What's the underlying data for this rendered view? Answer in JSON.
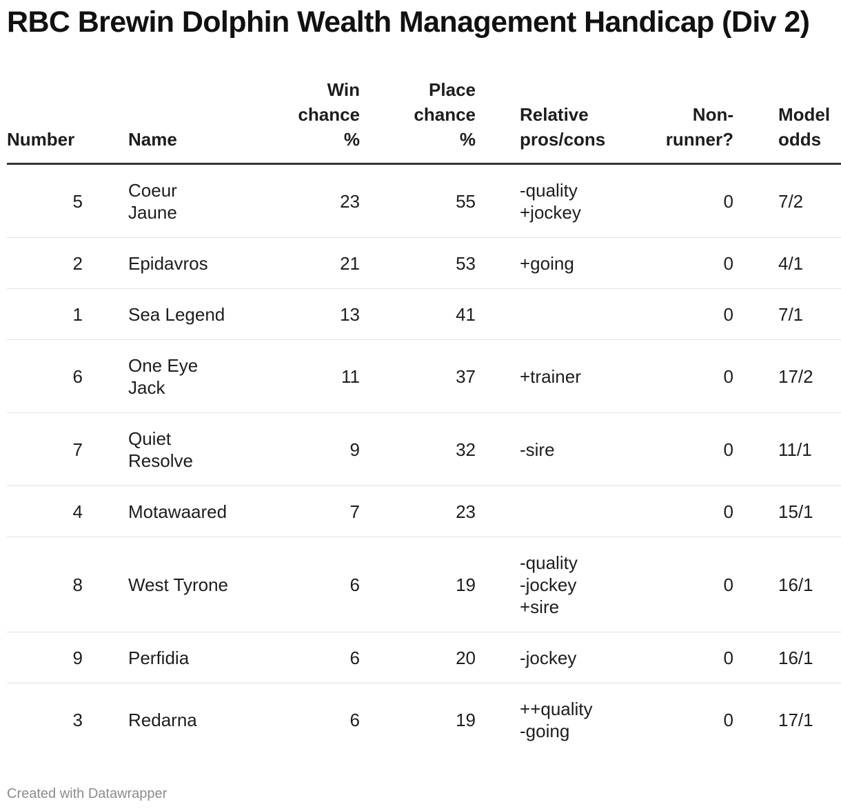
{
  "chart_data": {
    "type": "table",
    "title": "RBC Brewin Dolphin Wealth Management Handicap (Div 2)",
    "columns": [
      {
        "key": "number",
        "label_lines": [
          "Number"
        ]
      },
      {
        "key": "name",
        "label_lines": [
          "Name"
        ]
      },
      {
        "key": "win",
        "label_lines": [
          "Win",
          "chance",
          "%"
        ]
      },
      {
        "key": "place",
        "label_lines": [
          "Place",
          "chance",
          "%"
        ]
      },
      {
        "key": "pros",
        "label_lines": [
          "Relative",
          "pros/cons"
        ]
      },
      {
        "key": "nonrunner",
        "label_lines": [
          "Non-",
          "runner?"
        ]
      },
      {
        "key": "odds",
        "label_lines": [
          "Model",
          "odds"
        ]
      }
    ],
    "rows": [
      {
        "number": "5",
        "name": [
          "Coeur",
          "Jaune"
        ],
        "win": "23",
        "place": "55",
        "pros": [
          "-quality",
          "+jockey"
        ],
        "nonrunner": "0",
        "odds": "7/2"
      },
      {
        "number": "2",
        "name": [
          "Epidavros"
        ],
        "win": "21",
        "place": "53",
        "pros": [
          "+going"
        ],
        "nonrunner": "0",
        "odds": "4/1"
      },
      {
        "number": "1",
        "name": [
          "Sea Legend"
        ],
        "win": "13",
        "place": "41",
        "pros": [],
        "nonrunner": "0",
        "odds": "7/1"
      },
      {
        "number": "6",
        "name": [
          "One Eye",
          "Jack"
        ],
        "win": "11",
        "place": "37",
        "pros": [
          "+trainer"
        ],
        "nonrunner": "0",
        "odds": "17/2"
      },
      {
        "number": "7",
        "name": [
          "Quiet",
          "Resolve"
        ],
        "win": "9",
        "place": "32",
        "pros": [
          "-sire"
        ],
        "nonrunner": "0",
        "odds": "11/1"
      },
      {
        "number": "4",
        "name": [
          "Motawaared"
        ],
        "win": "7",
        "place": "23",
        "pros": [],
        "nonrunner": "0",
        "odds": "15/1"
      },
      {
        "number": "8",
        "name": [
          "West Tyrone"
        ],
        "win": "6",
        "place": "19",
        "pros": [
          "-quality",
          "-jockey",
          "+sire"
        ],
        "nonrunner": "0",
        "odds": "16/1"
      },
      {
        "number": "9",
        "name": [
          "Perfidia"
        ],
        "win": "6",
        "place": "20",
        "pros": [
          "-jockey"
        ],
        "nonrunner": "0",
        "odds": "16/1"
      },
      {
        "number": "3",
        "name": [
          "Redarna"
        ],
        "win": "6",
        "place": "19",
        "pros": [
          "++quality",
          "-going"
        ],
        "nonrunner": "0",
        "odds": "17/1"
      }
    ]
  },
  "footer": "Created with Datawrapper",
  "colors": {
    "text": "#1d1d1d",
    "header_rule": "#333333",
    "row_rule": "#e3e3e3",
    "footer": "#8c8c8c"
  }
}
